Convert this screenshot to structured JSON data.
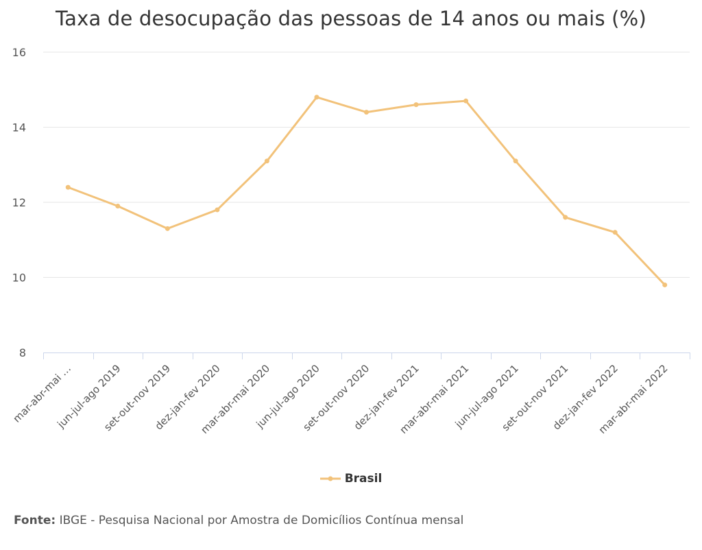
{
  "chart_data": {
    "type": "line",
    "title": "Taxa de desocupação das pessoas de 14 anos ou mais (%)",
    "categories": [
      "mar-abr-mai …",
      "jun-jul-ago 2019",
      "set-out-nov 2019",
      "dez-jan-fev 2020",
      "mar-abr-mai 2020",
      "jun-jul-ago 2020",
      "set-out-nov 2020",
      "dez-jan-fev 2021",
      "mar-abr-mai 2021",
      "jun-jul-ago 2021",
      "set-out-nov 2021",
      "dez-jan-fev 2022",
      "mar-abr-mai 2022"
    ],
    "series": [
      {
        "name": "Brasil",
        "color": "#F2C27A",
        "values": [
          12.4,
          11.9,
          11.3,
          11.8,
          13.1,
          14.8,
          14.4,
          14.6,
          14.7,
          13.1,
          11.6,
          11.2,
          9.8
        ]
      }
    ],
    "y_ticks": [
      "8",
      "10",
      "12",
      "14",
      "16"
    ],
    "ylim": [
      8,
      16
    ],
    "xlabel": "",
    "ylabel": "",
    "grid": true,
    "legend": "bottom-center"
  },
  "legend": {
    "label": "Brasil"
  },
  "source": {
    "prefix": "Fonte:",
    "text": " IBGE - Pesquisa Nacional por Amostra de Domicílios Contínua mensal"
  },
  "colors": {
    "series": "#F2C27A",
    "grid": "#E6E6E6",
    "axis": "#CCD6EB"
  }
}
